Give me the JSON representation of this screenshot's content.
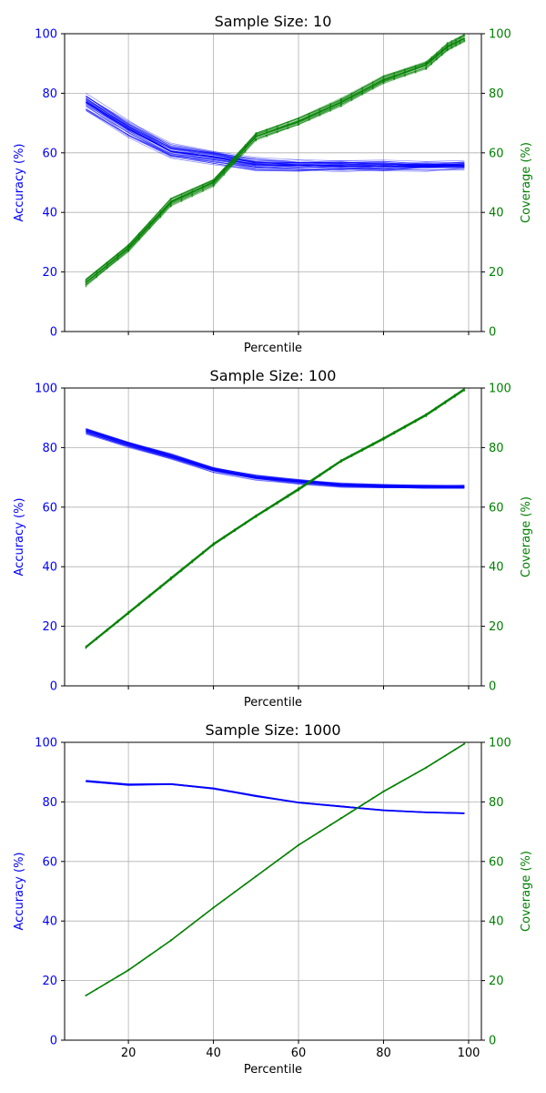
{
  "colors": {
    "accuracy": "#0000ff",
    "coverage": "#008000",
    "axis": "#000000",
    "grid": "#b0b0b0"
  },
  "chart_data": [
    {
      "type": "line",
      "title": "Sample Size: 10",
      "xlabel": "Percentile",
      "ylabel_left": "Accuracy (%)",
      "ylabel_right": "Coverage (%)",
      "xlim": [
        5,
        103
      ],
      "ylim_left": [
        0,
        100
      ],
      "ylim_right": [
        0,
        100
      ],
      "x_ticks": [
        20,
        40,
        60,
        80,
        100
      ],
      "x_tick_labels_shown": false,
      "y_ticks": [
        0,
        20,
        40,
        60,
        80,
        100
      ],
      "grid": true,
      "spread": {
        "accuracy": 2.5,
        "coverage": 1.2
      },
      "series": [
        {
          "axis": "left",
          "color": "#0000ff",
          "style": "multi-line",
          "count": 40,
          "x": [
            10,
            20,
            30,
            40,
            50,
            60,
            70,
            80,
            90,
            99
          ],
          "values": [
            77,
            68,
            60.5,
            58.5,
            56,
            55.8,
            55.6,
            55.6,
            55.6,
            55.7
          ]
        },
        {
          "axis": "right",
          "color": "#008000",
          "style": "multi-line-markers",
          "count": 25,
          "x": [
            10,
            20,
            30,
            40,
            50,
            60,
            70,
            80,
            90,
            95,
            99
          ],
          "values": [
            16.5,
            28,
            43.5,
            50,
            65.5,
            70.5,
            77,
            84.5,
            89.5,
            95.5,
            98.5
          ]
        }
      ]
    },
    {
      "type": "line",
      "title": "Sample Size: 100",
      "xlabel": "Percentile",
      "ylabel_left": "Accuracy (%)",
      "ylabel_right": "Coverage (%)",
      "xlim": [
        5,
        103
      ],
      "ylim_left": [
        0,
        100
      ],
      "ylim_right": [
        0,
        100
      ],
      "x_ticks": [
        20,
        40,
        60,
        80,
        100
      ],
      "x_tick_labels_shown": false,
      "y_ticks": [
        0,
        20,
        40,
        60,
        80,
        100
      ],
      "grid": true,
      "spread": {
        "accuracy": 1.0,
        "coverage": 0.4
      },
      "series": [
        {
          "axis": "left",
          "color": "#0000ff",
          "style": "multi-line",
          "count": 30,
          "x": [
            10,
            20,
            30,
            40,
            50,
            60,
            70,
            80,
            90,
            99
          ],
          "values": [
            85.5,
            81,
            77,
            72.5,
            70,
            68.5,
            67.3,
            67,
            66.8,
            66.8
          ]
        },
        {
          "axis": "right",
          "color": "#008000",
          "style": "multi-line-markers",
          "count": 15,
          "x": [
            10,
            20,
            30,
            40,
            50,
            60,
            70,
            80,
            90,
            99
          ],
          "values": [
            13,
            24.5,
            36,
            47.5,
            57,
            66,
            75.5,
            83,
            91,
            99.5
          ]
        }
      ]
    },
    {
      "type": "line",
      "title": "Sample Size: 1000",
      "xlabel": "Percentile",
      "ylabel_left": "Accuracy (%)",
      "ylabel_right": "Coverage (%)",
      "xlim": [
        5,
        103
      ],
      "ylim_left": [
        0,
        100
      ],
      "ylim_right": [
        0,
        100
      ],
      "x_ticks": [
        20,
        40,
        60,
        80,
        100
      ],
      "x_tick_labels_shown": true,
      "y_ticks": [
        0,
        20,
        40,
        60,
        80,
        100
      ],
      "grid": true,
      "spread": {
        "accuracy": 0.3,
        "coverage": 0.15
      },
      "series": [
        {
          "axis": "left",
          "color": "#0000ff",
          "style": "multi-line",
          "count": 20,
          "x": [
            10,
            20,
            30,
            40,
            50,
            60,
            70,
            80,
            90,
            99
          ],
          "values": [
            87,
            85.8,
            86,
            84.5,
            82,
            79.8,
            78.5,
            77.2,
            76.5,
            76.2
          ]
        },
        {
          "axis": "right",
          "color": "#008000",
          "style": "multi-line-markers",
          "count": 10,
          "x": [
            10,
            20,
            30,
            40,
            50,
            60,
            70,
            80,
            90,
            99
          ],
          "values": [
            15,
            23.5,
            33.5,
            44.5,
            55,
            65.5,
            74.5,
            83.5,
            91.5,
            99.5
          ]
        }
      ]
    }
  ]
}
